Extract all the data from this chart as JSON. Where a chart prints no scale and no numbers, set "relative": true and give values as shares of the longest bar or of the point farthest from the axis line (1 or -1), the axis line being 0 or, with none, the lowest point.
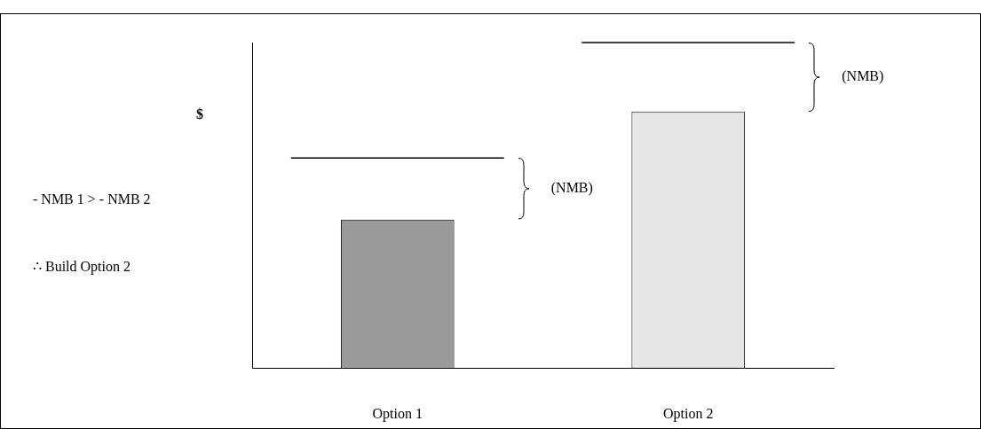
{
  "chart_data": {
    "type": "bar",
    "relative": true,
    "ylabel": "$",
    "categories": [
      "Option 1",
      "Option 2"
    ],
    "series": [
      {
        "values": [
          0.58,
          1
        ],
        "colors": [
          "#9a9a9a",
          "#e6e6e6"
        ]
      }
    ],
    "ref_lines": [
      {
        "axis": "y",
        "value": 0.82,
        "color": "#000000"
      },
      {
        "axis": "y",
        "value": 1.27,
        "color": "#000000"
      }
    ],
    "annotations": [
      "(NMB)",
      "(NMB)",
      "- NMB 1 > - NMB 2",
      "∴ Build Option 2"
    ],
    "grid": false,
    "legend": false
  }
}
